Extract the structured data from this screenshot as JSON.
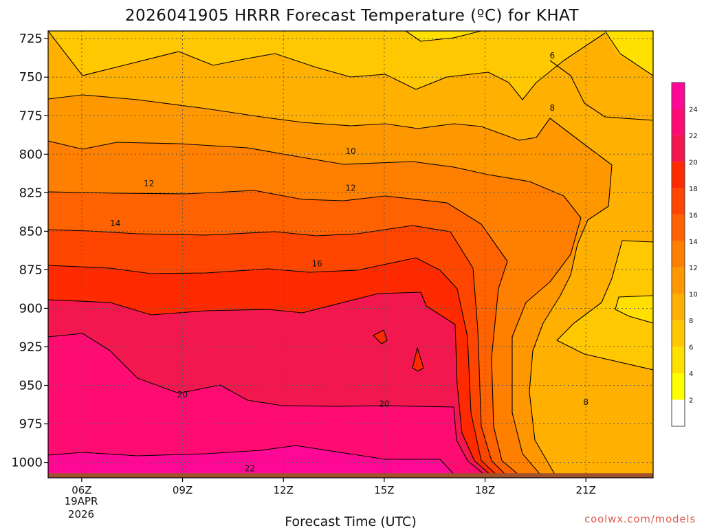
{
  "chart_data": {
    "type": "contour",
    "title": "2026041905 HRRR Forecast Temperature (ºC) for KHAT",
    "xlabel": "Forecast Time (UTC)",
    "ylabel": "",
    "credit": "coolwx.com/models",
    "x_ticks": [
      "06Z",
      "09Z",
      "12Z",
      "15Z",
      "18Z",
      "21Z"
    ],
    "x_tick_hours": [
      6,
      9,
      12,
      15,
      18,
      21
    ],
    "x_date_line1": "19APR",
    "x_date_line2": "2026",
    "x_range_hours": [
      5,
      23
    ],
    "y_ticks": [
      725,
      750,
      775,
      800,
      825,
      850,
      875,
      900,
      925,
      950,
      975,
      1000
    ],
    "y_range_hpa": [
      1010,
      720
    ],
    "surface_pressure_hpa": 1007,
    "colorbar_ticks": [
      2,
      4,
      6,
      8,
      10,
      12,
      14,
      16,
      18,
      20,
      22,
      24
    ],
    "colorbar_colors": [
      "#ffffff",
      "#ffff00",
      "#ffe000",
      "#ffc800",
      "#ffb000",
      "#ff9800",
      "#ff7f00",
      "#ff6200",
      "#ff4600",
      "#ff2a00",
      "#f2184f",
      "#ff0c72",
      "#ff0896"
    ],
    "ground_color": "#a0522d",
    "contour_labels": [
      {
        "text": "6",
        "hour": 20.0,
        "hpa": 736
      },
      {
        "text": "8",
        "hour": 20.0,
        "hpa": 770
      },
      {
        "text": "10",
        "hour": 14.0,
        "hpa": 798
      },
      {
        "text": "12",
        "hour": 8.0,
        "hpa": 819
      },
      {
        "text": "12",
        "hour": 14.0,
        "hpa": 822
      },
      {
        "text": "14",
        "hour": 7.0,
        "hpa": 845
      },
      {
        "text": "16",
        "hour": 13.0,
        "hpa": 871
      },
      {
        "text": "20",
        "hour": 9.0,
        "hpa": 956
      },
      {
        "text": "20",
        "hour": 15.0,
        "hpa": 962
      },
      {
        "text": "8",
        "hour": 21.0,
        "hpa": 961
      },
      {
        "text": "22",
        "hour": 11.0,
        "hpa": 1004
      }
    ]
  }
}
